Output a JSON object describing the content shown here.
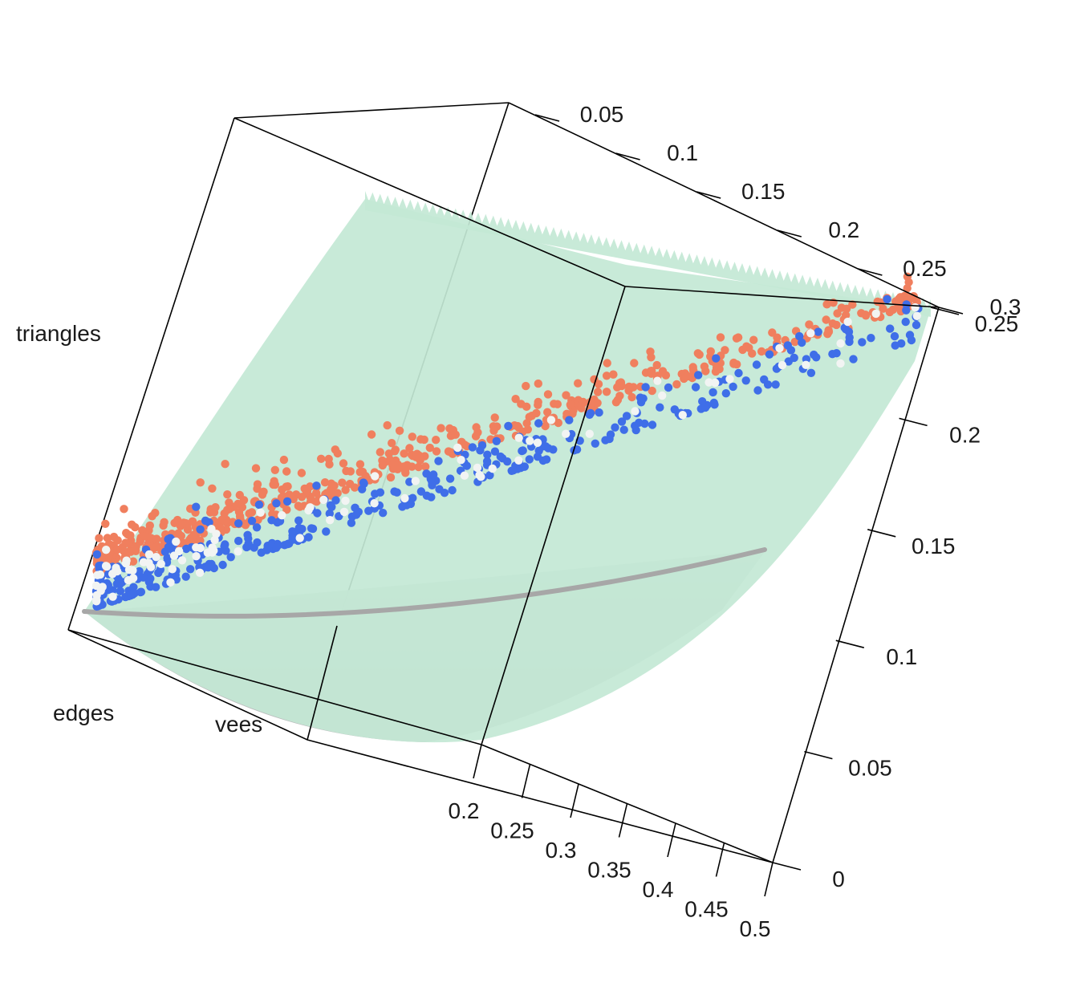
{
  "chart_data": {
    "type": "scatter",
    "title": "",
    "axes": {
      "edges": {
        "label": "edges",
        "ticks": [
          "0.2",
          "0.25",
          "0.3",
          "0.35",
          "0.4",
          "0.45",
          "0.5"
        ],
        "range": [
          0.2,
          0.5
        ]
      },
      "vees": {
        "label": "vees",
        "ticks": [
          "0.05",
          "0.1",
          "0.15",
          "0.2",
          "0.25",
          "0.3"
        ],
        "range": [
          0.05,
          0.3
        ]
      },
      "triangles": {
        "label": "triangles",
        "ticks": [
          "0",
          "0.05",
          "0.1",
          "0.15",
          "0.2",
          "0.25"
        ],
        "range": [
          0,
          0.25
        ]
      }
    },
    "surfaces": [
      {
        "kind": "fitted-surface",
        "color": "#c3e8d5"
      },
      {
        "kind": "lower-surface",
        "color": "#b7b8b9"
      }
    ],
    "point_groups": [
      {
        "color": "#f07f5e",
        "count": 520
      },
      {
        "color": "#3f6ee8",
        "count": 360
      },
      {
        "color": "#f2f4f3",
        "count": 90
      }
    ],
    "grid": false,
    "legend": "none"
  }
}
